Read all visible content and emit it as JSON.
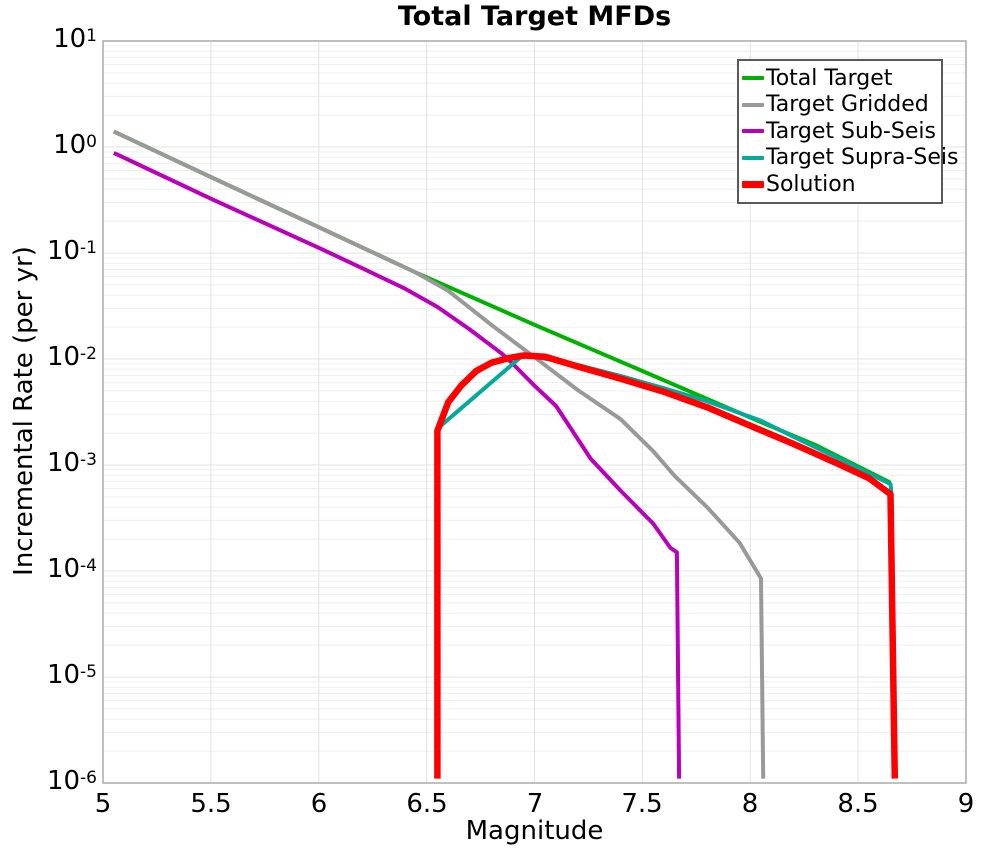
{
  "title": "Total Target MFDs",
  "axes": {
    "x": {
      "label": "Magnitude",
      "min": 5,
      "max": 9,
      "ticks": [
        5,
        5.5,
        6,
        6.5,
        7,
        7.5,
        8,
        8.5,
        9
      ],
      "tick_labels": [
        "5",
        "5.5",
        "6",
        "6.5",
        "7",
        "7.5",
        "8",
        "8.5",
        "9"
      ]
    },
    "y": {
      "label": "Incremental Rate (per yr)",
      "scale": "log",
      "tick_exponents": [
        1,
        0,
        -1,
        -2,
        -3,
        -4,
        -5,
        -6
      ]
    }
  },
  "style_colors": {
    "frame": "#aaaaaa",
    "grid_major": "#e3e3e3",
    "grid_minor": "#efefef",
    "background": "#ffffff"
  },
  "chart_data": {
    "type": "line",
    "title": "Total Target MFDs",
    "xlabel": "Magnitude",
    "ylabel": "Incremental Rate (per yr)",
    "xlim": [
      5,
      9
    ],
    "ylim": [
      1e-06,
      10
    ],
    "yscale": "log",
    "grid": true,
    "legend_position": "upper right",
    "series": [
      {
        "name": "Total Target",
        "color": "#00b200",
        "width": 4,
        "points": [
          [
            5.05,
            1.4
          ],
          [
            5.5,
            0.52
          ],
          [
            6.0,
            0.175
          ],
          [
            6.45,
            0.0655
          ],
          [
            7.0,
            0.021
          ],
          [
            7.5,
            0.0077
          ],
          [
            8.0,
            0.0028
          ],
          [
            8.3,
            0.00155
          ],
          [
            8.65,
            0.00068
          ]
        ]
      },
      {
        "name": "Target Gridded",
        "color": "#999999",
        "width": 4,
        "points": [
          [
            5.05,
            1.4
          ],
          [
            5.5,
            0.52
          ],
          [
            6.0,
            0.175
          ],
          [
            6.45,
            0.0655
          ],
          [
            6.6,
            0.044
          ],
          [
            6.8,
            0.021
          ],
          [
            7.0,
            0.0104
          ],
          [
            7.2,
            0.0051
          ],
          [
            7.4,
            0.0027
          ],
          [
            7.55,
            0.00135
          ],
          [
            7.65,
            0.00079
          ],
          [
            7.8,
            0.0004
          ],
          [
            7.95,
            0.000185
          ],
          [
            8.05,
            8.5e-05
          ],
          [
            8.06,
            1.1e-06
          ]
        ]
      },
      {
        "name": "Target Sub-Seis",
        "color": "#bb00bb",
        "width": 4,
        "points": [
          [
            5.05,
            0.88
          ],
          [
            5.5,
            0.325
          ],
          [
            6.0,
            0.112
          ],
          [
            6.2,
            0.072
          ],
          [
            6.4,
            0.046
          ],
          [
            6.55,
            0.031
          ],
          [
            6.7,
            0.019
          ],
          [
            6.85,
            0.0112
          ],
          [
            6.9,
            0.009
          ],
          [
            7.0,
            0.0056
          ],
          [
            7.1,
            0.0036
          ],
          [
            7.26,
            0.00115
          ],
          [
            7.4,
            0.00057
          ],
          [
            7.55,
            0.00028
          ],
          [
            7.63,
            0.000165
          ],
          [
            7.66,
            0.00015
          ],
          [
            7.67,
            1.1e-06
          ]
        ]
      },
      {
        "name": "Target Supra-Seis",
        "color": "#00ab9e",
        "width": 4,
        "points": [
          [
            6.55,
            0.0022
          ],
          [
            6.95,
            0.011
          ],
          [
            7.2,
            0.0088
          ],
          [
            7.4,
            0.0069
          ],
          [
            7.6,
            0.0053
          ],
          [
            7.8,
            0.004
          ],
          [
            8.05,
            0.00262
          ],
          [
            8.2,
            0.00185
          ],
          [
            8.4,
            0.00118
          ],
          [
            8.65,
            0.00066
          ],
          [
            8.655,
            0.00053
          ]
        ]
      },
      {
        "name": "Solution",
        "color": "#ff0000",
        "width": 6.5,
        "points": [
          [
            6.55,
            1.1e-06
          ],
          [
            6.55,
            0.0021
          ],
          [
            6.6,
            0.0039
          ],
          [
            6.66,
            0.0056
          ],
          [
            6.73,
            0.0077
          ],
          [
            6.8,
            0.0092
          ],
          [
            6.88,
            0.0102
          ],
          [
            6.95,
            0.0108
          ],
          [
            7.05,
            0.0105
          ],
          [
            7.2,
            0.0085
          ],
          [
            7.4,
            0.0065
          ],
          [
            7.6,
            0.0049
          ],
          [
            7.8,
            0.0035
          ],
          [
            8.0,
            0.00235
          ],
          [
            8.2,
            0.00158
          ],
          [
            8.4,
            0.00104
          ],
          [
            8.55,
            0.00075
          ],
          [
            8.65,
            0.00053
          ],
          [
            8.67,
            1.1e-06
          ]
        ]
      }
    ]
  }
}
